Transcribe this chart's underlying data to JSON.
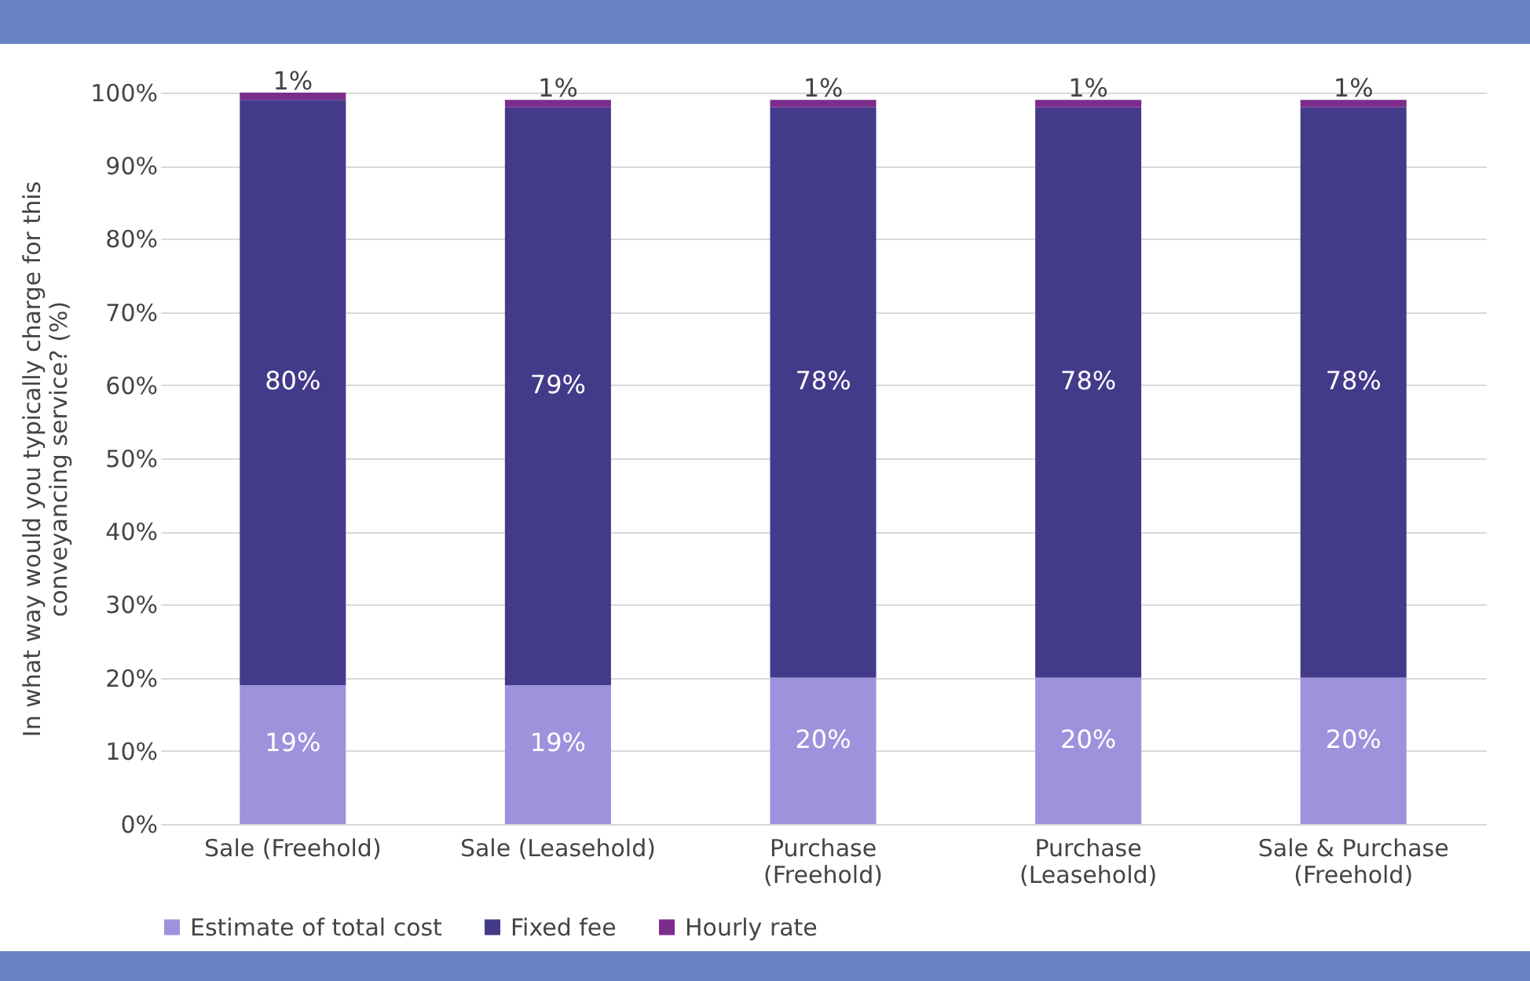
{
  "chart_data": {
    "type": "bar",
    "stacked": true,
    "ylabel": "In what way would you typically charge for this conveyancing service? (%)",
    "categories": [
      "Sale (Freehold)",
      "Sale (Leasehold)",
      "Purchase (Freehold)",
      "Purchase (Leasehold)",
      "Sale & Purchase (Freehold)"
    ],
    "series": [
      {
        "name": "Estimate of total cost",
        "color": "#9d93dc",
        "values": [
          19,
          19,
          20,
          20,
          20
        ],
        "value_labels": [
          "19%",
          "19%",
          "20%",
          "20%",
          "20%"
        ]
      },
      {
        "name": "Fixed fee",
        "color": "#443a8a",
        "values": [
          80,
          79,
          78,
          78,
          78
        ],
        "value_labels": [
          "80%",
          "79%",
          "78%",
          "78%",
          "78%"
        ]
      },
      {
        "name": "Hourly rate",
        "color": "#7b2d8c",
        "values": [
          1,
          1,
          1,
          1,
          1
        ],
        "value_labels": [
          "1%",
          "1%",
          "1%",
          "1%",
          "1%"
        ]
      }
    ],
    "ylim": [
      0,
      100
    ],
    "yticks": [
      {
        "value": 0,
        "label": "0%"
      },
      {
        "value": 10,
        "label": "10%"
      },
      {
        "value": 20,
        "label": "20%"
      },
      {
        "value": 30,
        "label": "30%"
      },
      {
        "value": 40,
        "label": "40%"
      },
      {
        "value": 50,
        "label": "50%"
      },
      {
        "value": 60,
        "label": "60%"
      },
      {
        "value": 70,
        "label": "70%"
      },
      {
        "value": 80,
        "label": "80%"
      },
      {
        "value": 90,
        "label": "90%"
      },
      {
        "value": 100,
        "label": "100%"
      }
    ],
    "grid": "y",
    "legend": "bottom"
  }
}
